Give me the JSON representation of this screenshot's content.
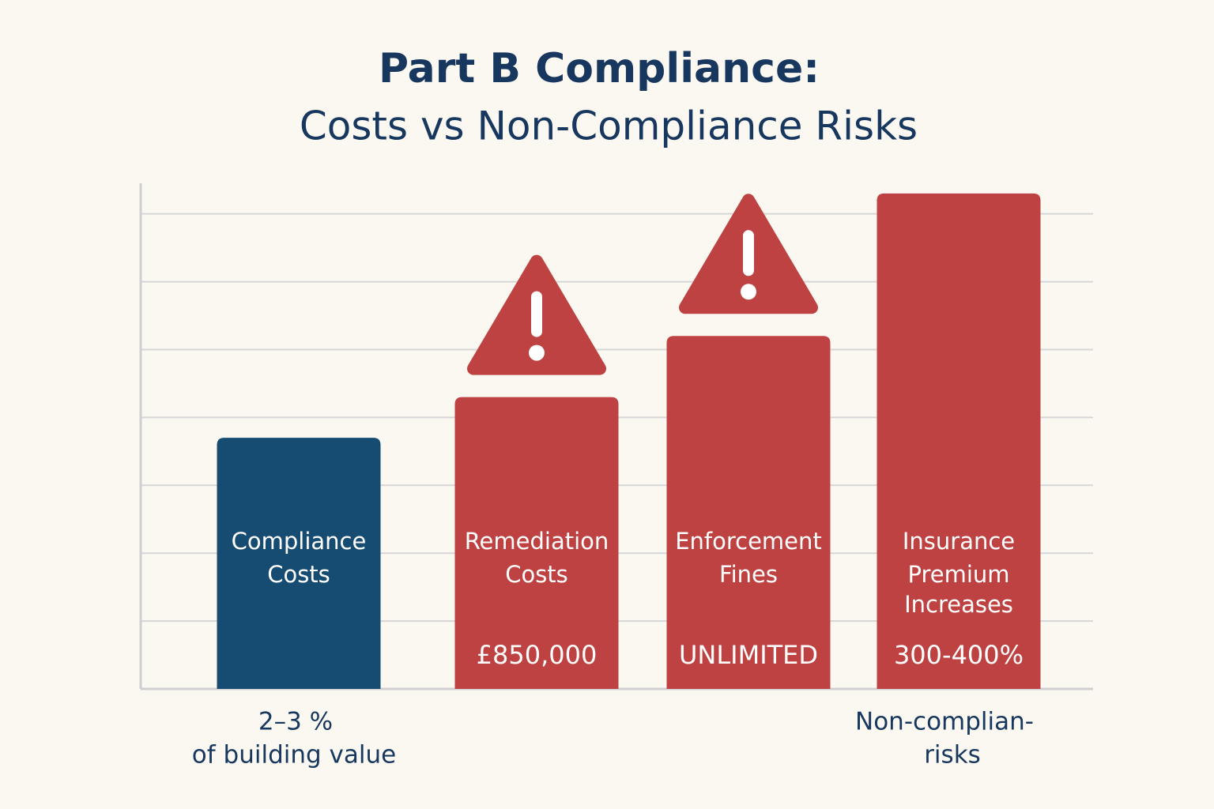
{
  "chart_data": {
    "type": "bar",
    "title": "Part B Compliance:",
    "subtitle": "Costs vs Non-Compliance Risks",
    "categories": [
      [
        "Compliance",
        "Costs"
      ],
      [
        "Remediation",
        "Costs"
      ],
      [
        "Enforcement",
        "Fines"
      ],
      [
        "Insurance",
        "Premium",
        "Increases"
      ]
    ],
    "values": [
      3.7,
      4.3,
      5.2,
      7.3
    ],
    "colors": [
      "#174c72",
      "#bf4242",
      "#bf4242",
      "#bf4242"
    ],
    "figures": [
      null,
      "£850,000",
      "UNLIMITED",
      "300-400%"
    ],
    "warning": [
      false,
      true,
      true,
      false
    ],
    "notes": [
      [
        "2–3 %",
        "of building value"
      ],
      null,
      null,
      [
        "Non-complian-",
        "risks"
      ]
    ],
    "ylim": [
      0,
      7.45
    ],
    "yticks": [
      1,
      2,
      3,
      4,
      5,
      6,
      7
    ],
    "grid": true
  }
}
